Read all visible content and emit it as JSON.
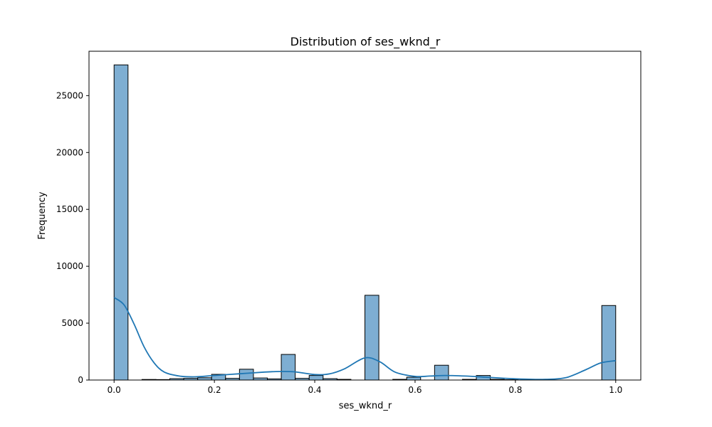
{
  "chart_data": {
    "type": "bar",
    "title": "Distribution of ses_wknd_r",
    "xlabel": "ses_wknd_r",
    "ylabel": "Frequency",
    "xlim": [
      -0.05,
      1.05
    ],
    "ylim": [
      0,
      28900
    ],
    "xticks": [
      0.0,
      0.2,
      0.4,
      0.6,
      0.8,
      1.0
    ],
    "xtick_labels": [
      "0.0",
      "0.2",
      "0.4",
      "0.6",
      "0.8",
      "1.0"
    ],
    "yticks": [
      0,
      5000,
      10000,
      15000,
      20000,
      25000
    ],
    "ytick_labels": [
      "0",
      "5000",
      "10000",
      "15000",
      "20000",
      "25000"
    ],
    "grid": false,
    "bin_width": 0.02778,
    "bins": [
      {
        "x0": 0.0,
        "count": 27700
      },
      {
        "x0": 0.0278,
        "count": 0
      },
      {
        "x0": 0.0556,
        "count": 50
      },
      {
        "x0": 0.0833,
        "count": 40
      },
      {
        "x0": 0.1111,
        "count": 120
      },
      {
        "x0": 0.1389,
        "count": 150
      },
      {
        "x0": 0.1667,
        "count": 200
      },
      {
        "x0": 0.1944,
        "count": 500
      },
      {
        "x0": 0.2222,
        "count": 150
      },
      {
        "x0": 0.25,
        "count": 950
      },
      {
        "x0": 0.2778,
        "count": 180
      },
      {
        "x0": 0.3056,
        "count": 100
      },
      {
        "x0": 0.3333,
        "count": 2250
      },
      {
        "x0": 0.3611,
        "count": 150
      },
      {
        "x0": 0.3889,
        "count": 400
      },
      {
        "x0": 0.4167,
        "count": 120
      },
      {
        "x0": 0.4444,
        "count": 60
      },
      {
        "x0": 0.4722,
        "count": 0
      },
      {
        "x0": 0.5,
        "count": 7450
      },
      {
        "x0": 0.5278,
        "count": 0
      },
      {
        "x0": 0.5556,
        "count": 60
      },
      {
        "x0": 0.5833,
        "count": 250
      },
      {
        "x0": 0.6111,
        "count": 0
      },
      {
        "x0": 0.6389,
        "count": 1300
      },
      {
        "x0": 0.6667,
        "count": 0
      },
      {
        "x0": 0.6944,
        "count": 60
      },
      {
        "x0": 0.7222,
        "count": 400
      },
      {
        "x0": 0.75,
        "count": 60
      },
      {
        "x0": 0.7778,
        "count": 30
      },
      {
        "x0": 0.8056,
        "count": 0
      },
      {
        "x0": 0.8333,
        "count": 0
      },
      {
        "x0": 0.8611,
        "count": 0
      },
      {
        "x0": 0.8889,
        "count": 0
      },
      {
        "x0": 0.9167,
        "count": 0
      },
      {
        "x0": 0.9444,
        "count": 0
      },
      {
        "x0": 0.9722,
        "count": 6550
      }
    ],
    "kde": {
      "x": [
        0.0,
        0.02,
        0.04,
        0.06,
        0.08,
        0.1,
        0.13,
        0.16,
        0.2,
        0.25,
        0.3,
        0.33,
        0.36,
        0.4,
        0.43,
        0.46,
        0.5,
        0.53,
        0.56,
        0.6,
        0.63,
        0.66,
        0.7,
        0.74,
        0.78,
        0.82,
        0.86,
        0.9,
        0.94,
        0.97,
        1.0
      ],
      "y": [
        7250,
        6600,
        4900,
        2900,
        1500,
        700,
        350,
        280,
        400,
        550,
        700,
        750,
        720,
        480,
        550,
        1000,
        1950,
        1600,
        700,
        320,
        350,
        400,
        350,
        250,
        150,
        80,
        60,
        200,
        900,
        1500,
        1700
      ]
    },
    "colors": {
      "bar_fill": "#7eaed2",
      "bar_edge": "#000000",
      "kde_line": "#1f77b4"
    }
  }
}
